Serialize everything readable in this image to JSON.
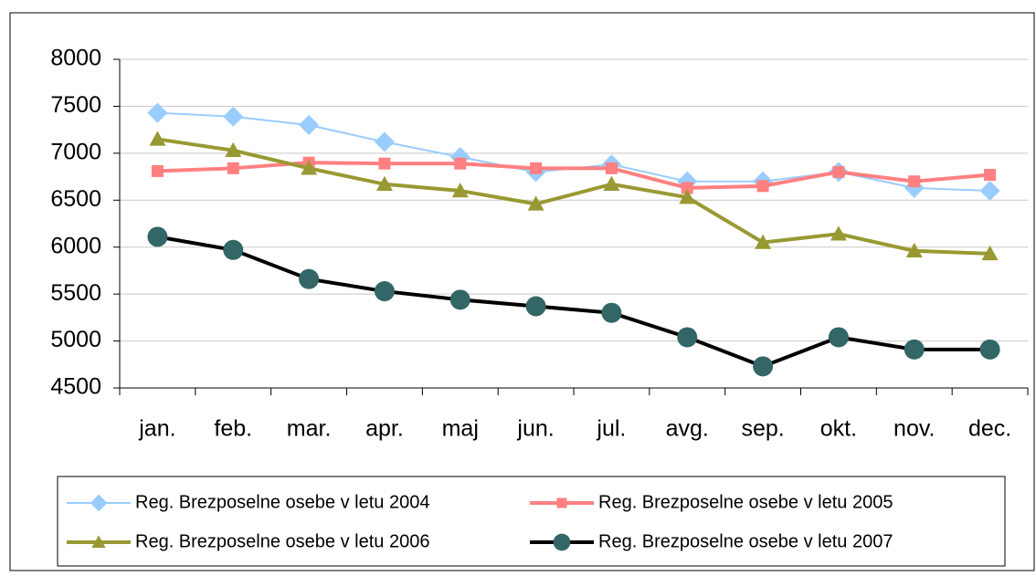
{
  "chart_data": {
    "type": "line",
    "categories": [
      "jan.",
      "feb.",
      "mar.",
      "apr.",
      "maj",
      "jun.",
      "jul.",
      "avg.",
      "sep.",
      "okt.",
      "nov.",
      "dec."
    ],
    "series": [
      {
        "name": "Reg. Brezposelne osebe v letu 2004",
        "color": "#99ccff",
        "marker": "diamond",
        "line_width": 2,
        "values": [
          7430,
          7390,
          7300,
          7120,
          6960,
          6800,
          6880,
          6700,
          6700,
          6800,
          6630,
          6600
        ]
      },
      {
        "name": "Reg. Brezposelne osebe v letu 2005",
        "color": "#ff8080",
        "marker": "square",
        "line_width": 4,
        "values": [
          6810,
          6840,
          6900,
          6890,
          6890,
          6840,
          6840,
          6630,
          6650,
          6800,
          6700,
          6770
        ]
      },
      {
        "name": "Reg. Brezposelne osebe v letu 2006",
        "color": "#999933",
        "marker": "triangle",
        "line_width": 4,
        "values": [
          7150,
          7030,
          6840,
          6670,
          6600,
          6460,
          6670,
          6530,
          6050,
          6140,
          5960,
          5930
        ]
      },
      {
        "name": "Reg. Brezposelne osebe v letu 2007",
        "color": "#000000",
        "marker_color": "#336666",
        "marker": "circle",
        "line_width": 4,
        "values": [
          6110,
          5970,
          5660,
          5530,
          5440,
          5370,
          5300,
          5040,
          4730,
          5040,
          4910,
          4910
        ]
      }
    ],
    "ylim": [
      4500,
      8000
    ],
    "yticks": [
      4500,
      5000,
      5500,
      6000,
      6500,
      7000,
      7500,
      8000
    ],
    "grid": true,
    "legend": "bottom"
  }
}
